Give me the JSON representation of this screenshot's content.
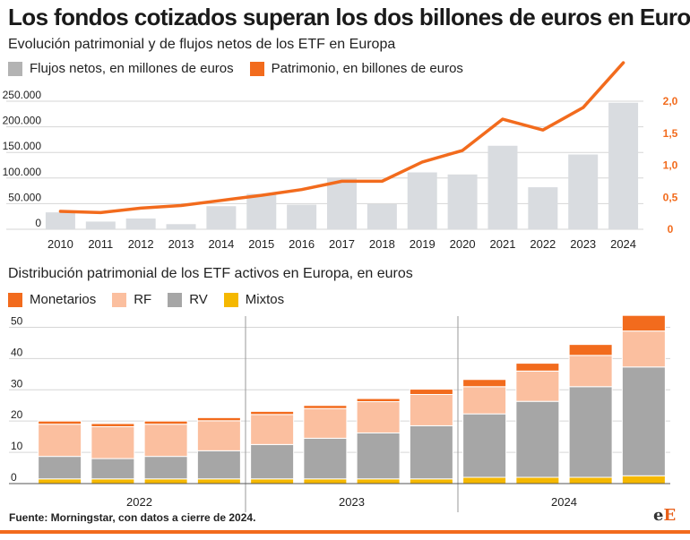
{
  "title": "Los fondos cotizados superan los dos billones de euros en Europa",
  "chart1": {
    "subtitle": "Evolución patrimonial y de flujos netos de los ETF en Europa",
    "legend": [
      {
        "label": "Flujos netos, en millones de euros",
        "color": "#b3b3b3"
      },
      {
        "label": "Patrimonio, en billones de euros",
        "color": "#f26b1d"
      }
    ]
  },
  "chart2": {
    "subtitle": "Distribución patrimonial de los ETF activos en Europa, en euros",
    "legend": [
      {
        "label": "Monetarios",
        "color": "#f26b1d"
      },
      {
        "label": "RF",
        "color": "#fbbf9f"
      },
      {
        "label": "RV",
        "color": "#a6a6a6"
      },
      {
        "label": "Mixtos",
        "color": "#f5b800"
      }
    ]
  },
  "chart_data": [
    {
      "type": "bar",
      "categories": [
        "2010",
        "2011",
        "2012",
        "2013",
        "2014",
        "2015",
        "2016",
        "2017",
        "2018",
        "2019",
        "2020",
        "2021",
        "2022",
        "2023",
        "2024"
      ],
      "series": [
        {
          "name": "Flujos netos, en millones de euros",
          "axis": "left",
          "type": "bar",
          "color": "#d9dce0",
          "values": [
            33000,
            15000,
            21000,
            10000,
            45000,
            69000,
            48000,
            101000,
            49000,
            111000,
            107000,
            163000,
            82000,
            146000,
            247000
          ]
        },
        {
          "name": "Patrimonio, en billones de euros",
          "axis": "right",
          "type": "line",
          "color": "#f26b1d",
          "values": [
            0.28,
            0.26,
            0.33,
            0.37,
            0.45,
            0.53,
            0.62,
            0.75,
            0.75,
            1.05,
            1.23,
            1.72,
            1.55,
            1.9,
            2.6
          ]
        }
      ],
      "left_ticks": [
        "0",
        "50.000",
        "100.000",
        "150.000",
        "200.000",
        "250.000"
      ],
      "left_tick_values": [
        0,
        50000,
        100000,
        150000,
        200000,
        250000
      ],
      "right_ticks": [
        "0",
        "0,5",
        "1,0",
        "1,5",
        "2,0"
      ],
      "right_tick_values": [
        0,
        0.5,
        1.0,
        1.5,
        2.0
      ],
      "ylim_left": [
        0,
        250000
      ],
      "ylim_right": [
        0,
        2.0
      ],
      "grid": true
    },
    {
      "type": "stacked_bar",
      "groups": [
        "2022",
        "2023",
        "2024"
      ],
      "bars_per_group": 4,
      "series": [
        {
          "name": "Mixtos",
          "color": "#f5b800",
          "values": [
            1.5,
            1.5,
            1.5,
            1.5,
            1.5,
            1.5,
            1.5,
            1.5,
            2,
            2,
            2,
            2.5
          ]
        },
        {
          "name": "RV",
          "color": "#a6a6a6",
          "values": [
            7.2,
            6.5,
            7.2,
            9,
            11,
            13,
            14.7,
            17,
            20.3,
            24.3,
            29,
            34.8
          ]
        },
        {
          "name": "RF",
          "color": "#fbbf9f",
          "values": [
            10.3,
            10.2,
            10.3,
            9.6,
            9.6,
            9.5,
            10,
            10,
            8.7,
            9.7,
            10,
            11.5
          ]
        },
        {
          "name": "Monetarios",
          "color": "#f26b1d",
          "values": [
            1,
            1,
            1,
            1,
            1,
            1,
            1,
            1.7,
            2.3,
            2.5,
            3.5,
            5
          ]
        }
      ],
      "y_ticks": [
        "0",
        "10",
        "20",
        "30",
        "40",
        "50"
      ],
      "y_tick_values": [
        0,
        10,
        20,
        30,
        40,
        50
      ],
      "ylim": [
        0,
        55
      ],
      "grid": true
    }
  ],
  "source": "Fuente: Morningstar, con datos a cierre de 2024.",
  "logo": {
    "part1": "e",
    "part2": "E"
  }
}
